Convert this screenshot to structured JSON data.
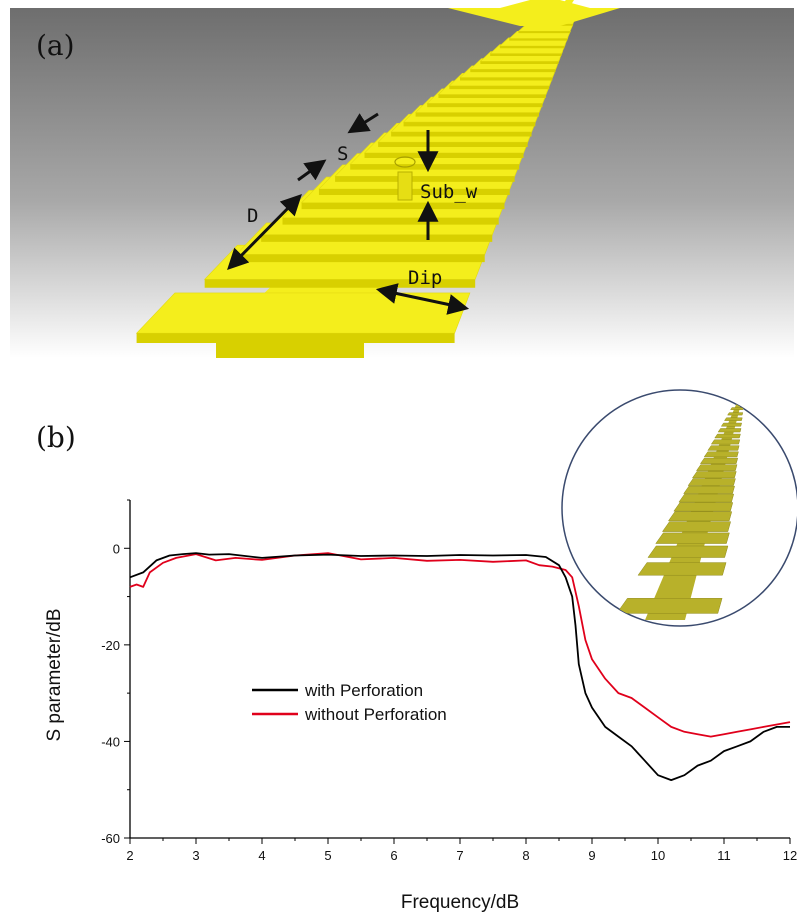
{
  "panel_a": {
    "label": "(a)",
    "annotations": {
      "s": "S",
      "sub_w": "Sub_w",
      "d": "D",
      "dip": "Dip"
    },
    "colors": {
      "strip": "#f4ee1c",
      "strip_side": "#d8d000",
      "arrow": "#111111",
      "background_top": "#6e6e6e",
      "background_bottom": "#ffffff"
    }
  },
  "panel_b": {
    "label": "(b)",
    "inset": {
      "colors": {
        "strip": "#b8b12a",
        "border": "#3a4a6e"
      }
    }
  },
  "chart_data": {
    "type": "line",
    "title": "",
    "xlabel": "Frequency/dB",
    "ylabel": "S parameter/dB",
    "xlim": [
      2,
      12
    ],
    "ylim": [
      -60,
      10
    ],
    "x_ticks": [
      "2",
      "3",
      "4",
      "5",
      "6",
      "7",
      "8",
      "9",
      "10",
      "11",
      "12"
    ],
    "y_ticks": [
      "0",
      "-20",
      "-40",
      "-60"
    ],
    "legend_position": "center-left",
    "grid": false,
    "series": [
      {
        "name": "with Perforation",
        "color": "#000000",
        "x": [
          2.0,
          2.2,
          2.4,
          2.6,
          2.8,
          3.0,
          3.2,
          3.5,
          4.0,
          4.5,
          5.0,
          5.5,
          6.0,
          6.5,
          7.0,
          7.5,
          8.0,
          8.3,
          8.5,
          8.6,
          8.7,
          8.75,
          8.8,
          8.9,
          9.0,
          9.1,
          9.2,
          9.4,
          9.6,
          9.8,
          10.0,
          10.2,
          10.4,
          10.6,
          10.8,
          11.0,
          11.2,
          11.4,
          11.6,
          11.8,
          12.0
        ],
        "y": [
          -6,
          -5,
          -2.5,
          -1.5,
          -1.2,
          -1,
          -1.3,
          -1.2,
          -2,
          -1.5,
          -1.3,
          -1.6,
          -1.5,
          -1.6,
          -1.4,
          -1.5,
          -1.4,
          -1.8,
          -3.5,
          -6,
          -10,
          -16,
          -24,
          -30,
          -33,
          -35,
          -37,
          -39,
          -41,
          -44,
          -47,
          -48,
          -47,
          -45,
          -44,
          -42,
          -41,
          -40,
          -38,
          -37,
          -37
        ]
      },
      {
        "name": "without Perforation",
        "color": "#e0001b",
        "x": [
          2.0,
          2.1,
          2.2,
          2.3,
          2.5,
          2.7,
          3.0,
          3.3,
          3.6,
          4.0,
          4.5,
          5.0,
          5.5,
          6.0,
          6.5,
          7.0,
          7.5,
          8.0,
          8.2,
          8.4,
          8.6,
          8.7,
          8.8,
          8.9,
          9.0,
          9.2,
          9.4,
          9.6,
          9.8,
          10.0,
          10.2,
          10.4,
          10.6,
          10.8,
          11.0,
          11.2,
          11.4,
          11.6,
          11.8,
          12.0
        ],
        "y": [
          -8,
          -7.5,
          -8,
          -5,
          -3,
          -2,
          -1.2,
          -2.5,
          -2,
          -2.4,
          -1.5,
          -1,
          -2.3,
          -2,
          -2.6,
          -2.4,
          -2.8,
          -2.5,
          -3.5,
          -3.8,
          -4.5,
          -6,
          -12,
          -19,
          -23,
          -27,
          -30,
          -31,
          -33,
          -35,
          -37,
          -38,
          -38.5,
          -39,
          -38.5,
          -38,
          -37.5,
          -37,
          -36.5,
          -36
        ]
      }
    ]
  }
}
